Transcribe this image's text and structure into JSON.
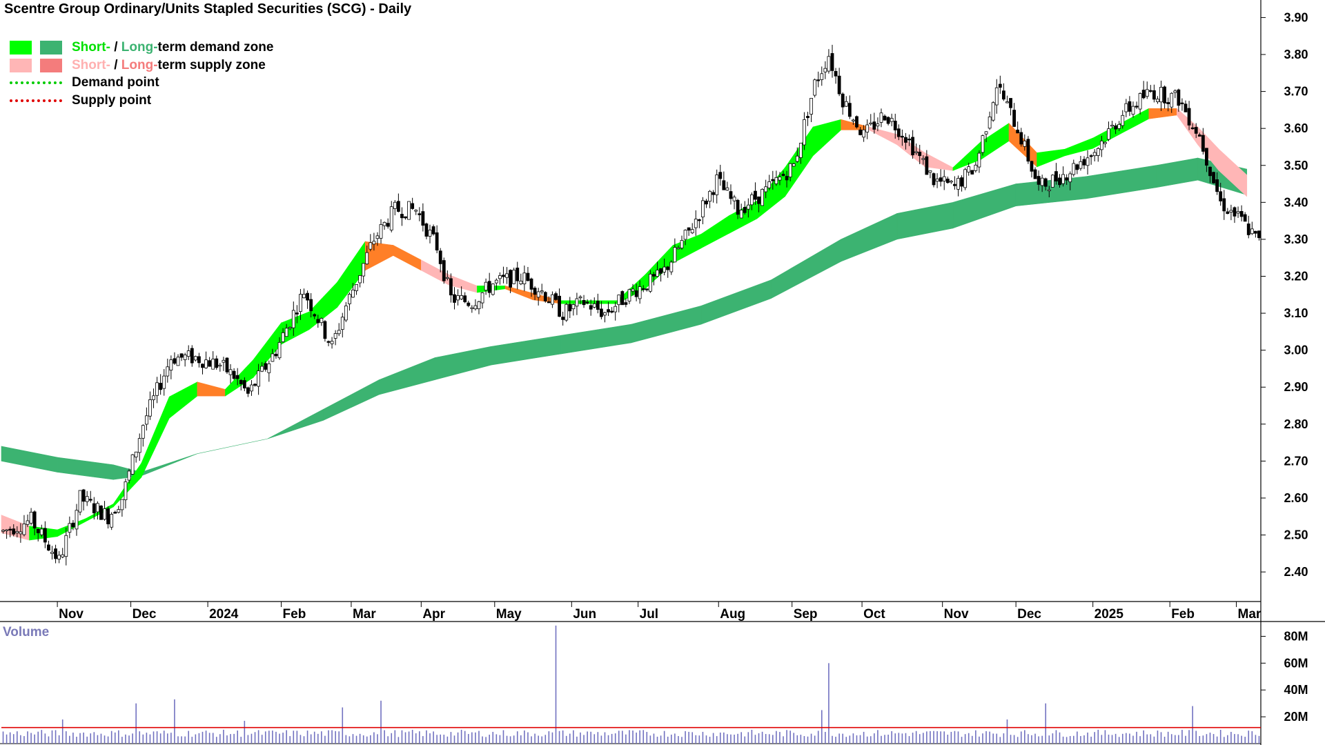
{
  "title": "Scentre Group Ordinary/Units Stapled Securities (SCG) - Daily",
  "legend": {
    "demand_zone": {
      "short": "Short-",
      "sep": " / ",
      "long": "Long-",
      "rest": "term demand zone"
    },
    "supply_zone": {
      "short": "Short-",
      "sep": " / ",
      "long": "Long-",
      "rest": "term supply zone"
    },
    "demand_point": "Demand point",
    "supply_point": "Supply point"
  },
  "colors": {
    "short_demand": "#00ff00",
    "long_demand": "#3cb371",
    "short_supply": "#ffb6b6",
    "long_supply": "#f47c7c",
    "crossover": "#ff7f27",
    "demand_point": "#00cc00",
    "supply_point": "#e00000",
    "volume_bars": "#7070c0",
    "volume_average": "#e00000"
  },
  "volume_label": "Volume",
  "chart_data": [
    {
      "type": "candlestick",
      "title": "Scentre Group Ordinary/Units Stapled Securities (SCG) - Daily",
      "y_ticks": [
        "2.40",
        "2.50",
        "2.60",
        "2.70",
        "2.80",
        "2.90",
        "3.00",
        "3.10",
        "3.20",
        "3.30",
        "3.40",
        "3.50",
        "3.60",
        "3.70",
        "3.80",
        "3.90"
      ],
      "ylim": [
        2.32,
        3.94
      ],
      "x_ticks": [
        "Nov",
        "Dec",
        "2024",
        "Feb",
        "Mar",
        "Apr",
        "May",
        "Jun",
        "Jul",
        "Aug",
        "Sep",
        "Oct",
        "Nov",
        "Dec",
        "2025",
        "Feb",
        "Mar"
      ],
      "x_tick_day_index": [
        16,
        37,
        59,
        80,
        100,
        120,
        141,
        163,
        182,
        205,
        226,
        246,
        269,
        290,
        312,
        334,
        353
      ],
      "trading_days": 360,
      "price_keypoints": [
        [
          0,
          2.51
        ],
        [
          8,
          2.54
        ],
        [
          16,
          2.43
        ],
        [
          22,
          2.6
        ],
        [
          30,
          2.55
        ],
        [
          34,
          2.6
        ],
        [
          40,
          2.8
        ],
        [
          48,
          2.98
        ],
        [
          55,
          2.98
        ],
        [
          62,
          2.96
        ],
        [
          66,
          2.93
        ],
        [
          70,
          2.88
        ],
        [
          78,
          3.0
        ],
        [
          86,
          3.16
        ],
        [
          94,
          3.01
        ],
        [
          98,
          3.12
        ],
        [
          106,
          3.3
        ],
        [
          112,
          3.38
        ],
        [
          118,
          3.38
        ],
        [
          124,
          3.28
        ],
        [
          128,
          3.14
        ],
        [
          134,
          3.13
        ],
        [
          140,
          3.18
        ],
        [
          148,
          3.2
        ],
        [
          154,
          3.16
        ],
        [
          160,
          3.1
        ],
        [
          166,
          3.13
        ],
        [
          172,
          3.1
        ],
        [
          180,
          3.16
        ],
        [
          188,
          3.2
        ],
        [
          196,
          3.32
        ],
        [
          204,
          3.46
        ],
        [
          210,
          3.38
        ],
        [
          218,
          3.43
        ],
        [
          226,
          3.5
        ],
        [
          232,
          3.72
        ],
        [
          236,
          3.8
        ],
        [
          240,
          3.68
        ],
        [
          246,
          3.58
        ],
        [
          252,
          3.64
        ],
        [
          258,
          3.58
        ],
        [
          266,
          3.46
        ],
        [
          272,
          3.44
        ],
        [
          278,
          3.5
        ],
        [
          284,
          3.72
        ],
        [
          290,
          3.6
        ],
        [
          296,
          3.44
        ],
        [
          304,
          3.48
        ],
        [
          312,
          3.54
        ],
        [
          320,
          3.64
        ],
        [
          328,
          3.7
        ],
        [
          336,
          3.68
        ],
        [
          342,
          3.58
        ],
        [
          348,
          3.4
        ],
        [
          354,
          3.35
        ],
        [
          360,
          3.28
        ]
      ],
      "short_term_zone": [
        [
          0,
          2.55,
          2.51
        ],
        [
          8,
          2.52,
          2.49
        ],
        [
          16,
          2.51,
          2.5
        ],
        [
          24,
          2.54,
          2.54
        ],
        [
          32,
          2.58,
          2.58
        ],
        [
          40,
          2.66,
          2.69
        ],
        [
          48,
          2.82,
          2.87
        ],
        [
          56,
          2.88,
          2.91
        ],
        [
          64,
          2.88,
          2.89
        ],
        [
          72,
          2.93,
          2.97
        ],
        [
          80,
          3.02,
          3.07
        ],
        [
          88,
          3.06,
          3.1
        ],
        [
          96,
          3.12,
          3.18
        ],
        [
          104,
          3.22,
          3.29
        ],
        [
          112,
          3.26,
          3.28
        ],
        [
          120,
          3.24,
          3.22
        ],
        [
          128,
          3.2,
          3.18
        ],
        [
          136,
          3.17,
          3.16
        ],
        [
          144,
          3.17,
          3.17
        ],
        [
          152,
          3.15,
          3.14
        ],
        [
          160,
          3.13,
          3.13
        ],
        [
          168,
          3.13,
          3.13
        ],
        [
          176,
          3.13,
          3.13
        ],
        [
          184,
          3.17,
          3.2
        ],
        [
          192,
          3.24,
          3.28
        ],
        [
          200,
          3.28,
          3.31
        ],
        [
          208,
          3.32,
          3.36
        ],
        [
          216,
          3.36,
          3.4
        ],
        [
          224,
          3.42,
          3.49
        ],
        [
          232,
          3.53,
          3.6
        ],
        [
          240,
          3.6,
          3.62
        ],
        [
          248,
          3.6,
          3.6
        ],
        [
          256,
          3.58,
          3.56
        ],
        [
          264,
          3.53,
          3.5
        ],
        [
          272,
          3.49,
          3.49
        ],
        [
          280,
          3.52,
          3.56
        ],
        [
          288,
          3.57,
          3.61
        ],
        [
          296,
          3.53,
          3.5
        ],
        [
          304,
          3.53,
          3.54
        ],
        [
          312,
          3.55,
          3.57
        ],
        [
          320,
          3.59,
          3.61
        ],
        [
          328,
          3.63,
          3.65
        ],
        [
          336,
          3.65,
          3.64
        ],
        [
          342,
          3.6,
          3.56
        ],
        [
          348,
          3.54,
          3.49
        ],
        [
          356,
          3.47,
          3.42
        ]
      ],
      "long_term_zone": [
        [
          0,
          2.74,
          2.7
        ],
        [
          16,
          2.71,
          2.67
        ],
        [
          32,
          2.69,
          2.65
        ],
        [
          40,
          2.67,
          2.66
        ],
        [
          56,
          2.72,
          2.72
        ],
        [
          76,
          2.76,
          2.76
        ],
        [
          92,
          2.84,
          2.81
        ],
        [
          108,
          2.92,
          2.88
        ],
        [
          124,
          2.98,
          2.92
        ],
        [
          140,
          3.01,
          2.96
        ],
        [
          160,
          3.04,
          2.99
        ],
        [
          180,
          3.07,
          3.02
        ],
        [
          200,
          3.12,
          3.07
        ],
        [
          220,
          3.19,
          3.14
        ],
        [
          240,
          3.3,
          3.24
        ],
        [
          256,
          3.37,
          3.3
        ],
        [
          272,
          3.4,
          3.33
        ],
        [
          290,
          3.45,
          3.39
        ],
        [
          310,
          3.47,
          3.41
        ],
        [
          330,
          3.5,
          3.44
        ],
        [
          342,
          3.52,
          3.46
        ],
        [
          356,
          3.49,
          3.42
        ]
      ],
      "last_price": 3.28
    },
    {
      "type": "bar",
      "title": "Volume",
      "y_ticks": [
        "20M",
        "40M",
        "60M",
        "80M"
      ],
      "ylim": [
        0,
        90
      ],
      "typical_volume_m": 9,
      "average_volume_m": 12,
      "volume_spikes": [
        [
          17,
          18
        ],
        [
          38,
          30
        ],
        [
          49,
          33
        ],
        [
          69,
          17
        ],
        [
          97,
          27
        ],
        [
          108,
          32
        ],
        [
          158,
          88
        ],
        [
          234,
          25
        ],
        [
          236,
          60
        ],
        [
          287,
          18
        ],
        [
          298,
          30
        ],
        [
          340,
          28
        ]
      ]
    }
  ]
}
